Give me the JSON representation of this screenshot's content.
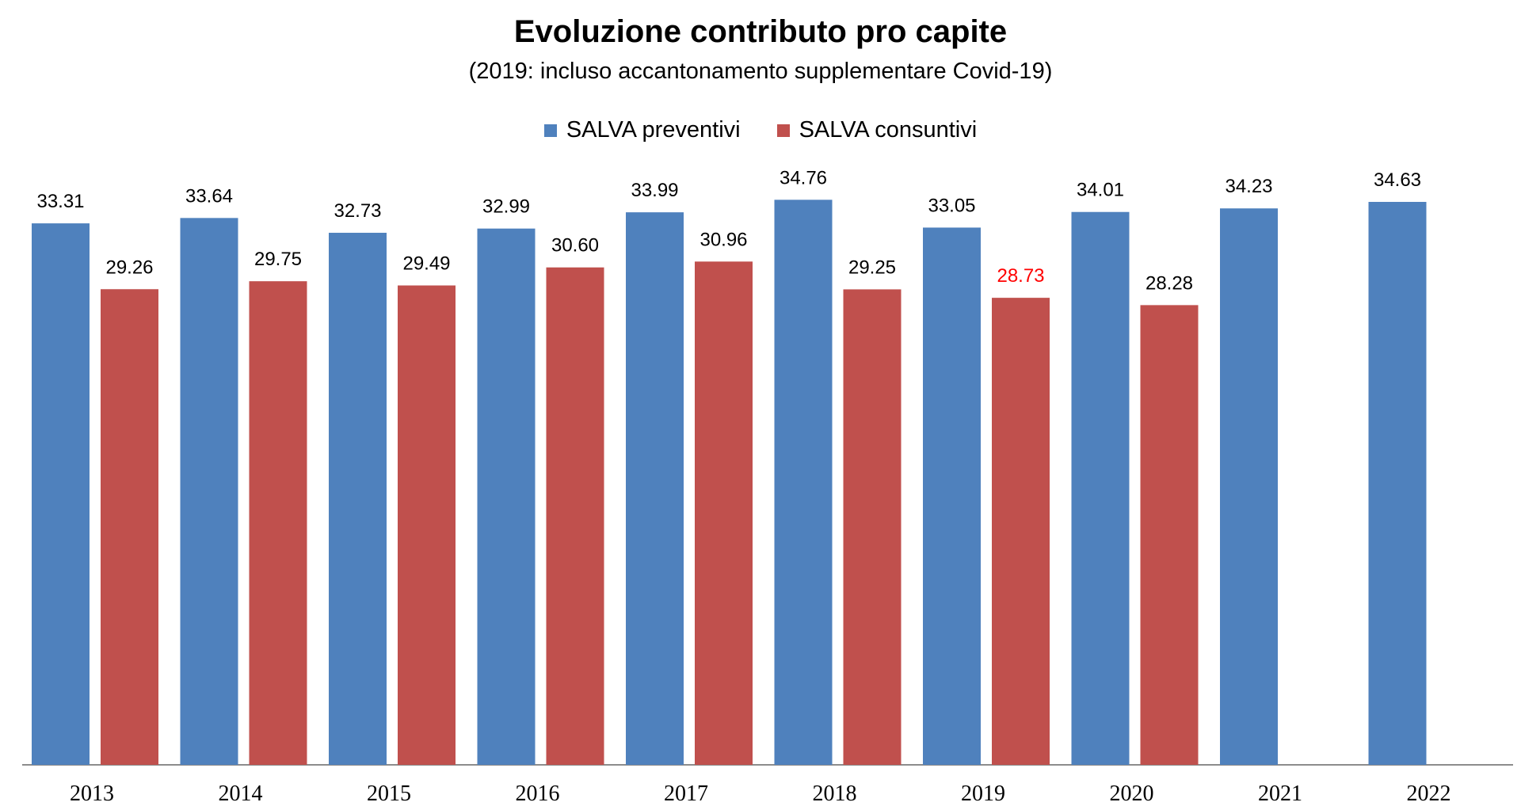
{
  "chart_data": {
    "type": "bar",
    "title": "Evoluzione contributo pro capite",
    "subtitle": "(2019: incluso accantonamento supplementare Covid-19)",
    "categories": [
      "2013",
      "2014",
      "2015",
      "2016",
      "2017",
      "2018",
      "2019",
      "2020",
      "2021",
      "2022"
    ],
    "series": [
      {
        "name": "SALVA preventivi",
        "color": "#4F81BD",
        "values": [
          33.31,
          33.64,
          32.73,
          32.99,
          33.99,
          34.76,
          33.05,
          34.01,
          34.23,
          34.63
        ],
        "labels": [
          "33.31",
          "33.64",
          "32.73",
          "32.99",
          "33.99",
          "34.76",
          "33.05",
          "34.01",
          "34.23",
          "34.63"
        ]
      },
      {
        "name": "SALVA consuntivi",
        "color": "#C0504D",
        "values": [
          29.26,
          29.75,
          29.49,
          30.6,
          30.96,
          29.25,
          28.73,
          28.28,
          null,
          null
        ],
        "labels": [
          "29.26",
          "29.75",
          "29.49",
          "30.60",
          "30.96",
          "29.25",
          "28.73",
          "28.28",
          "",
          ""
        ]
      }
    ],
    "highlighted_label": {
      "series": 1,
      "index": 6,
      "color": "#FF0000"
    },
    "ylim": [
      0,
      35
    ],
    "xlabel": "",
    "ylabel": "",
    "grid": false,
    "legend": "top-center"
  }
}
